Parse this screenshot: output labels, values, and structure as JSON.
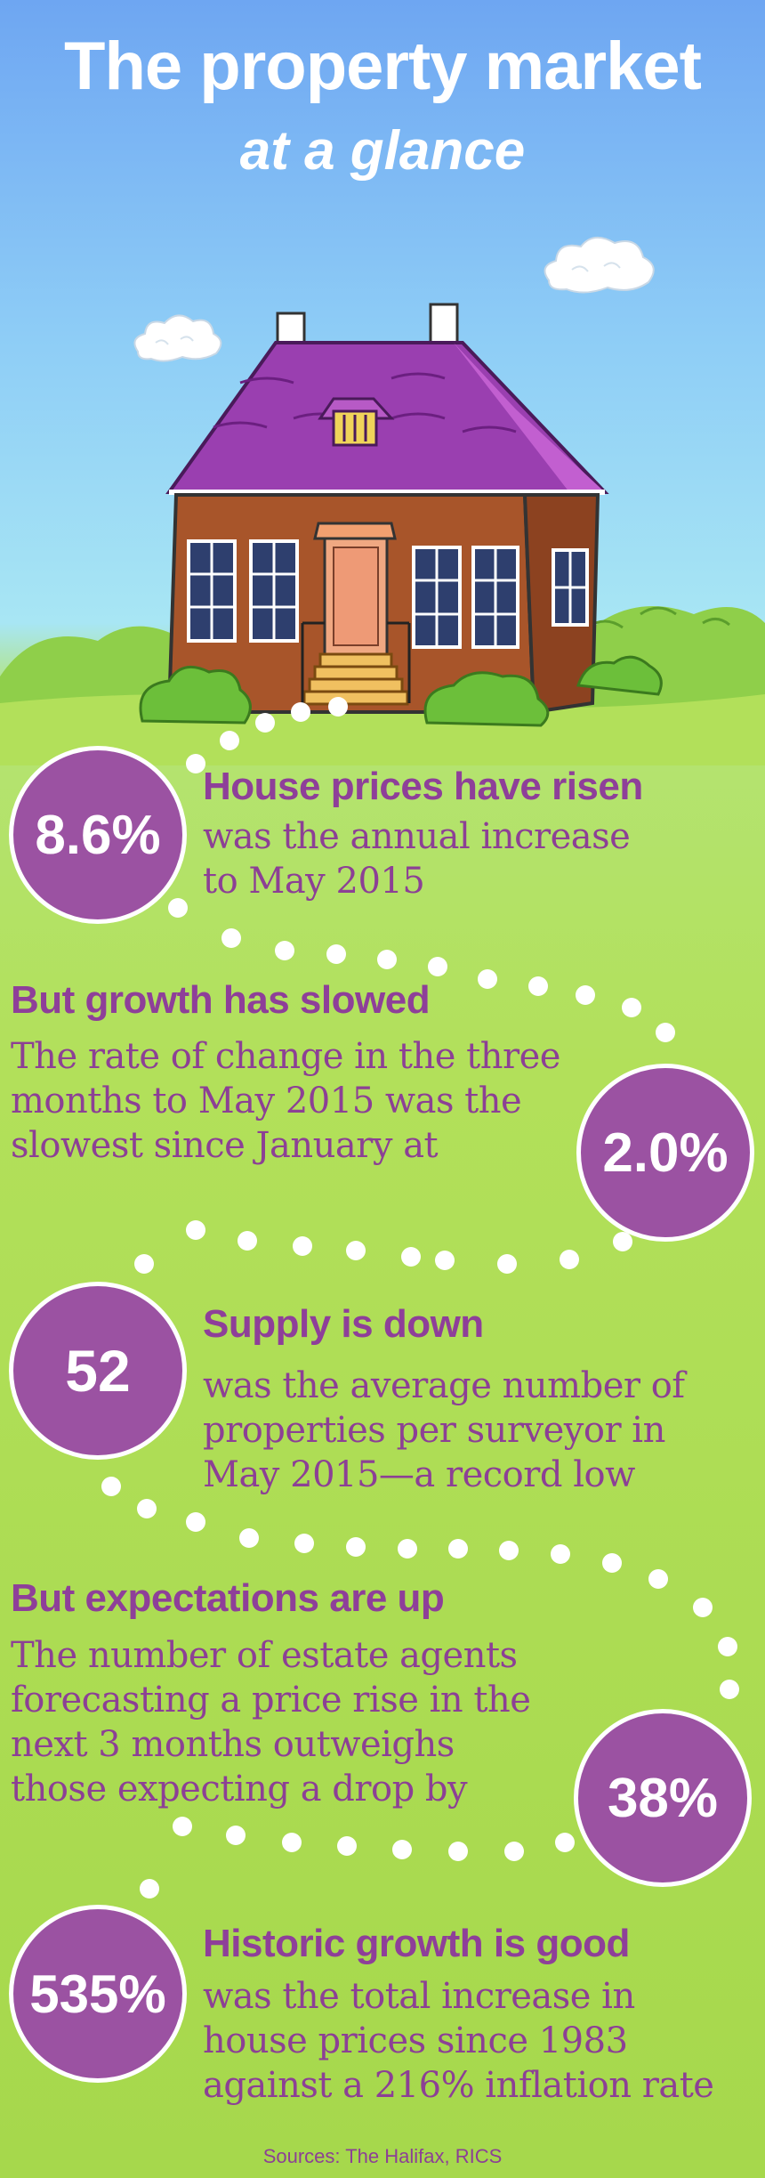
{
  "header": {
    "title": "The property market",
    "subtitle": "at a glance"
  },
  "stats": [
    {
      "value": "8.6%",
      "heading": "House prices have risen",
      "lines": [
        "was the annual increase",
        "to May 2015"
      ]
    },
    {
      "value": "2.0%",
      "heading": "But growth has slowed",
      "lines": [
        "The rate of change in the three",
        "months to May 2015 was the",
        "slowest since January at"
      ]
    },
    {
      "value": "52",
      "heading": "Supply is down",
      "lines": [
        "was the average number of",
        "properties per surveyor in",
        "May 2015—a record low"
      ]
    },
    {
      "value": "38%",
      "heading": "But expectations are up",
      "lines": [
        "The number of estate agents",
        "forecasting a price rise in the",
        "next 3 months outweighs",
        "those expecting a drop by"
      ]
    },
    {
      "value": "535%",
      "heading": "Historic growth is good",
      "lines": [
        "was the total increase in",
        "house prices since 1983",
        "against a 216% inflation rate"
      ]
    }
  ],
  "footer": {
    "sources": "Sources: The Halifax, RICS"
  },
  "colors": {
    "accent": "#9b52a2",
    "text": "#8c4095",
    "grass": "#b2e05a",
    "sky": "#6ea6f2"
  }
}
